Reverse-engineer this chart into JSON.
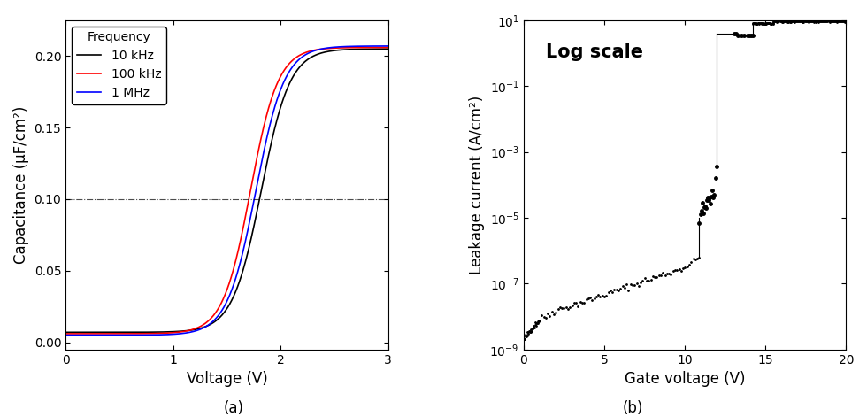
{
  "cv_xlim": [
    0,
    3
  ],
  "cv_ylim": [
    -0.005,
    0.225
  ],
  "cv_xlabel": "Voltage (V)",
  "cv_ylabel": "Capacitance (μF/cm²)",
  "cv_hline_y": 0.1,
  "cv_yticks": [
    0.0,
    0.05,
    0.1,
    0.15,
    0.2
  ],
  "cv_xticks": [
    0,
    1,
    2,
    3
  ],
  "cv_legend_title": "Frequency",
  "cv_legend_entries": [
    "10 kHz",
    "100 kHz",
    "1 MHz"
  ],
  "cv_colors": [
    "black",
    "red",
    "blue"
  ],
  "lc_xlim": [
    0,
    20
  ],
  "lc_ylim_log": [
    -9,
    1
  ],
  "lc_xlabel": "Gate voltage (V)",
  "lc_ylabel": "Leakage current (A/cm²)",
  "lc_xticks": [
    0,
    5,
    10,
    15,
    20
  ],
  "lc_annotation": "Log scale",
  "fig_labels": [
    "(a)",
    "(b)"
  ],
  "background_color": "#ffffff"
}
